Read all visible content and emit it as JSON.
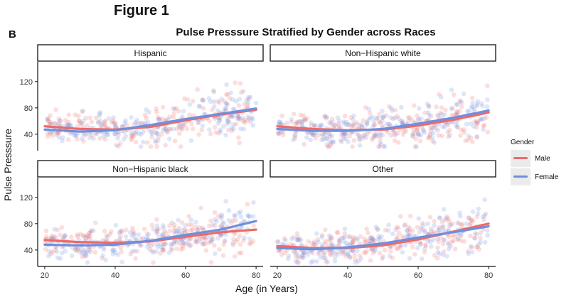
{
  "figure": {
    "label": "Figure 1",
    "panel": "B"
  },
  "chart_data": {
    "type": "scatter",
    "title": "Pulse Presssure Stratified by Gender across Races",
    "xlabel": "Age (in Years)",
    "ylabel": "Pulse Presssure",
    "xlim": [
      18,
      82
    ],
    "ylim": [
      15,
      150
    ],
    "xticks": [
      20,
      40,
      60,
      80
    ],
    "yticks": [
      40,
      80,
      120
    ],
    "legend": {
      "title": "Gender",
      "position": "right"
    },
    "series_styles": [
      {
        "name": "Male",
        "color": "#ee6a66"
      },
      {
        "name": "Female",
        "color": "#6f8fde"
      }
    ],
    "facets": [
      {
        "label": "Hispanic",
        "trend": {
          "Male": [
            [
              20,
              52
            ],
            [
              30,
              48
            ],
            [
              40,
              47
            ],
            [
              50,
              51
            ],
            [
              60,
              61
            ],
            [
              70,
              70
            ],
            [
              80,
              77
            ]
          ],
          "Female": [
            [
              20,
              47
            ],
            [
              30,
              44
            ],
            [
              40,
              46
            ],
            [
              50,
              54
            ],
            [
              60,
              63
            ],
            [
              70,
              71
            ],
            [
              80,
              79
            ]
          ]
        }
      },
      {
        "label": "Non−Hispanic white",
        "trend": {
          "Male": [
            [
              20,
              52
            ],
            [
              30,
              48
            ],
            [
              40,
              46
            ],
            [
              50,
              47
            ],
            [
              60,
              53
            ],
            [
              70,
              62
            ],
            [
              80,
              73
            ]
          ],
          "Female": [
            [
              20,
              48
            ],
            [
              30,
              45
            ],
            [
              40,
              45
            ],
            [
              50,
              48
            ],
            [
              60,
              56
            ],
            [
              70,
              65
            ],
            [
              80,
              76
            ]
          ]
        }
      },
      {
        "label": "Non−Hispanic black",
        "trend": {
          "Male": [
            [
              20,
              55
            ],
            [
              30,
              52
            ],
            [
              40,
              51
            ],
            [
              50,
              53
            ],
            [
              60,
              60
            ],
            [
              70,
              67
            ],
            [
              80,
              71
            ]
          ],
          "Female": [
            [
              20,
              48
            ],
            [
              30,
              47
            ],
            [
              40,
              48
            ],
            [
              50,
              54
            ],
            [
              60,
              63
            ],
            [
              70,
              71
            ],
            [
              80,
              84
            ]
          ]
        }
      },
      {
        "label": "Other",
        "trend": {
          "Male": [
            [
              20,
              46
            ],
            [
              30,
              43
            ],
            [
              40,
              43
            ],
            [
              50,
              47
            ],
            [
              60,
              56
            ],
            [
              70,
              68
            ],
            [
              80,
              80
            ]
          ],
          "Female": [
            [
              20,
              43
            ],
            [
              30,
              41
            ],
            [
              40,
              44
            ],
            [
              50,
              50
            ],
            [
              60,
              59
            ],
            [
              70,
              67
            ],
            [
              80,
              76
            ]
          ]
        }
      }
    ]
  }
}
